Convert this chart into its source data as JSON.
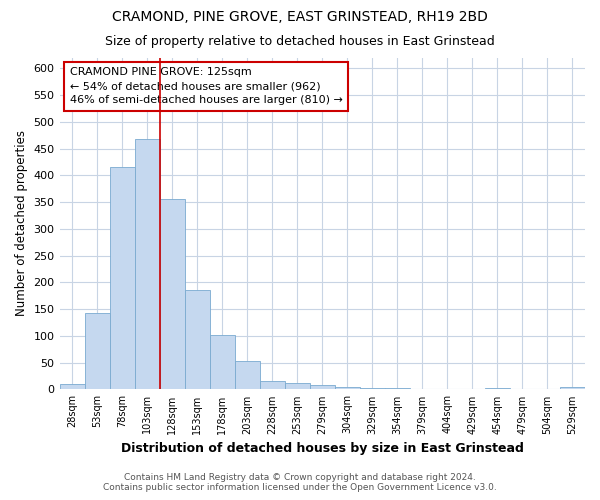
{
  "title": "CRAMOND, PINE GROVE, EAST GRINSTEAD, RH19 2BD",
  "subtitle": "Size of property relative to detached houses in East Grinstead",
  "xlabel": "Distribution of detached houses by size in East Grinstead",
  "ylabel": "Number of detached properties",
  "categories": [
    "28sqm",
    "53sqm",
    "78sqm",
    "103sqm",
    "128sqm",
    "153sqm",
    "178sqm",
    "203sqm",
    "228sqm",
    "253sqm",
    "279sqm",
    "304sqm",
    "329sqm",
    "354sqm",
    "379sqm",
    "404sqm",
    "429sqm",
    "454sqm",
    "479sqm",
    "504sqm",
    "529sqm"
  ],
  "values": [
    10,
    143,
    415,
    468,
    355,
    185,
    102,
    54,
    15,
    12,
    9,
    4,
    2,
    2,
    0,
    0,
    0,
    3,
    0,
    0,
    4
  ],
  "bar_color": "#c5d8ef",
  "bar_edge_color": "#7aaad0",
  "grid_color": "#c8d4e4",
  "bg_color": "#ffffff",
  "property_line_index": 4,
  "annotation_line1": "CRAMOND PINE GROVE: 125sqm",
  "annotation_line2": "← 54% of detached houses are smaller (962)",
  "annotation_line3": "46% of semi-detached houses are larger (810) →",
  "annotation_box_color": "#ffffff",
  "annotation_box_edge": "#cc0000",
  "line_color": "#cc0000",
  "footer_line1": "Contains HM Land Registry data © Crown copyright and database right 2024.",
  "footer_line2": "Contains public sector information licensed under the Open Government Licence v3.0.",
  "ylim": [
    0,
    620
  ],
  "yticks": [
    0,
    50,
    100,
    150,
    200,
    250,
    300,
    350,
    400,
    450,
    500,
    550,
    600
  ]
}
